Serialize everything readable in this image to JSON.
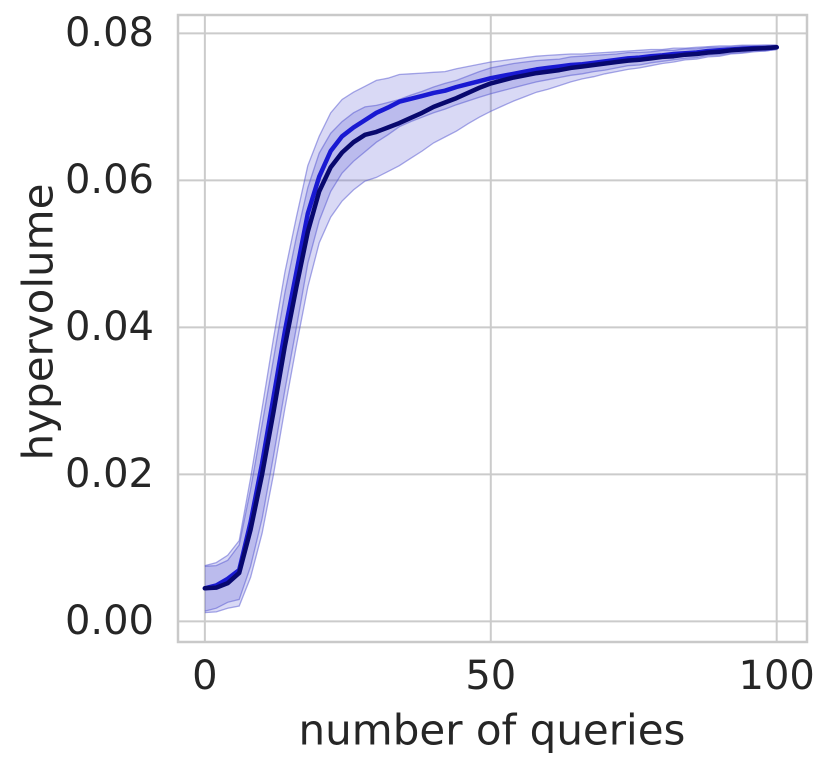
{
  "figure": {
    "background": "#ffffff",
    "grid_color": "#cbcbcb",
    "border_color": "#c9c9c9",
    "text_color": "#262626"
  },
  "chart_data": {
    "type": "line",
    "title": "",
    "xlabel": "number of queries",
    "ylabel": "hypervolume",
    "grid": true,
    "legend_position": "none",
    "xlim": [
      -4.7,
      105.3
    ],
    "ylim": [
      -0.0028,
      0.0825
    ],
    "xticks": [
      {
        "value": 0,
        "label": "0"
      },
      {
        "value": 50,
        "label": "50"
      },
      {
        "value": 100,
        "label": "100"
      }
    ],
    "yticks": [
      {
        "value": 0.0,
        "label": "0.00"
      },
      {
        "value": 0.02,
        "label": "0.02"
      },
      {
        "value": 0.04,
        "label": "0.04"
      },
      {
        "value": 0.06,
        "label": "0.06"
      },
      {
        "value": 0.08,
        "label": "0.08"
      }
    ],
    "x": [
      0,
      2,
      4,
      6,
      8,
      10,
      12,
      14,
      16,
      18,
      20,
      22,
      24,
      26,
      28,
      30,
      32,
      34,
      36,
      38,
      40,
      42,
      44,
      46,
      48,
      50,
      52,
      54,
      56,
      58,
      60,
      62,
      64,
      66,
      68,
      70,
      72,
      74,
      76,
      78,
      80,
      82,
      84,
      86,
      88,
      90,
      92,
      94,
      96,
      98,
      100
    ],
    "series": [
      {
        "name": "line-1-bright-blue",
        "color": "#1919d2",
        "band_color": "rgba(82,84,208,0.22)",
        "band_edge_color": "rgba(82,84,208,0.50)",
        "values": [
          0.0045,
          0.0049,
          0.0058,
          0.007,
          0.0135,
          0.0215,
          0.0305,
          0.0395,
          0.0475,
          0.0555,
          0.0605,
          0.064,
          0.066,
          0.0672,
          0.0682,
          0.0692,
          0.0699,
          0.0707,
          0.0711,
          0.0715,
          0.0719,
          0.0722,
          0.0727,
          0.0731,
          0.0735,
          0.0739,
          0.0742,
          0.0745,
          0.0748,
          0.0751,
          0.0753,
          0.0755,
          0.0757,
          0.0758,
          0.076,
          0.0762,
          0.0764,
          0.0766,
          0.0767,
          0.0769,
          0.077,
          0.0772,
          0.0773,
          0.0774,
          0.0776,
          0.0777,
          0.0778,
          0.0779,
          0.078,
          0.078,
          0.0781
        ],
        "band_upper_offset": [
          0.0031,
          0.0031,
          0.0032,
          0.004,
          0.006,
          0.0075,
          0.008,
          0.008,
          0.0075,
          0.0065,
          0.0055,
          0.0052,
          0.005,
          0.0048,
          0.0046,
          0.0044,
          0.004,
          0.0037,
          0.0034,
          0.0031,
          0.0028,
          0.0026,
          0.0025,
          0.0024,
          0.0023,
          0.0022,
          0.0021,
          0.002,
          0.0019,
          0.0018,
          0.0017,
          0.0016,
          0.0015,
          0.0014,
          0.0013,
          0.0012,
          0.0011,
          0.001,
          0.001,
          0.0009,
          0.0008,
          0.0008,
          0.0007,
          0.0007,
          0.0006,
          0.0006,
          0.0005,
          0.0005,
          0.0004,
          0.0004,
          0.0003
        ],
        "band_lower_offset": [
          0.0031,
          0.0031,
          0.0032,
          0.004,
          0.006,
          0.0075,
          0.008,
          0.008,
          0.0075,
          0.0068,
          0.006,
          0.0055,
          0.005,
          0.0046,
          0.0043,
          0.004,
          0.0037,
          0.0034,
          0.0031,
          0.0029,
          0.0027,
          0.0025,
          0.0024,
          0.0023,
          0.0022,
          0.0021,
          0.002,
          0.0019,
          0.0018,
          0.0017,
          0.0016,
          0.0015,
          0.0014,
          0.0013,
          0.0012,
          0.0012,
          0.0011,
          0.001,
          0.001,
          0.0009,
          0.0008,
          0.0008,
          0.0007,
          0.0007,
          0.0006,
          0.0006,
          0.0005,
          0.0005,
          0.0004,
          0.0004,
          0.0003
        ]
      },
      {
        "name": "line-2-dark-navy",
        "color": "#08086e",
        "band_color": "rgba(82,84,208,0.22)",
        "band_edge_color": "rgba(82,84,208,0.50)",
        "values": [
          0.0045,
          0.0046,
          0.0052,
          0.0066,
          0.0125,
          0.02,
          0.0285,
          0.0375,
          0.0455,
          0.053,
          0.0585,
          0.0618,
          0.0638,
          0.0652,
          0.0662,
          0.0666,
          0.0672,
          0.0678,
          0.0685,
          0.0692,
          0.07,
          0.0706,
          0.0712,
          0.0719,
          0.0726,
          0.0732,
          0.0736,
          0.074,
          0.0743,
          0.0746,
          0.0748,
          0.075,
          0.0753,
          0.0755,
          0.0757,
          0.0759,
          0.0761,
          0.0763,
          0.0764,
          0.0766,
          0.0768,
          0.0769,
          0.0771,
          0.0772,
          0.0774,
          0.0775,
          0.0777,
          0.0778,
          0.0779,
          0.078,
          0.0781
        ],
        "band_upper_offset": [
          0.003,
          0.003,
          0.0031,
          0.0038,
          0.0055,
          0.0068,
          0.0072,
          0.0072,
          0.0068,
          0.006,
          0.0052,
          0.0046,
          0.0042,
          0.004,
          0.0038,
          0.0036,
          0.0034,
          0.0032,
          0.0031,
          0.0029,
          0.0027,
          0.0026,
          0.0024,
          0.0023,
          0.0022,
          0.0021,
          0.002,
          0.0019,
          0.0018,
          0.0017,
          0.0016,
          0.0015,
          0.0015,
          0.0014,
          0.0013,
          0.0012,
          0.0011,
          0.0011,
          0.001,
          0.0009,
          0.0009,
          0.0008,
          0.0008,
          0.0007,
          0.0007,
          0.0006,
          0.0005,
          0.0005,
          0.0004,
          0.0004,
          0.0003
        ],
        "band_lower_offset": [
          0.0033,
          0.0033,
          0.0034,
          0.0045,
          0.0065,
          0.008,
          0.0085,
          0.0085,
          0.008,
          0.0075,
          0.007,
          0.0068,
          0.0066,
          0.0065,
          0.0063,
          0.0062,
          0.006,
          0.0058,
          0.0055,
          0.0052,
          0.0049,
          0.0047,
          0.0045,
          0.0042,
          0.004,
          0.0038,
          0.0035,
          0.0032,
          0.0029,
          0.0026,
          0.0024,
          0.0021,
          0.0019,
          0.0017,
          0.0016,
          0.0014,
          0.0013,
          0.0012,
          0.0011,
          0.001,
          0.0009,
          0.0008,
          0.0007,
          0.0007,
          0.0006,
          0.0006,
          0.0005,
          0.0005,
          0.0004,
          0.0004,
          0.0003
        ]
      }
    ]
  }
}
